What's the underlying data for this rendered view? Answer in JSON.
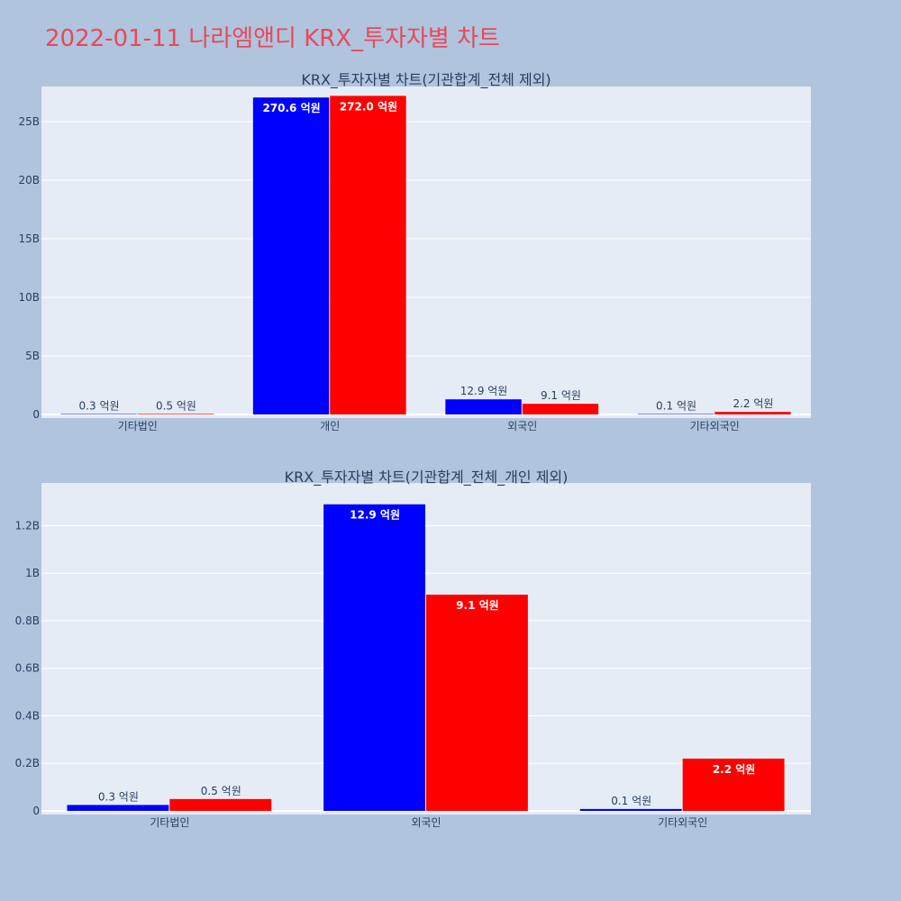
{
  "title": "2022-01-11 나라엠앤디 KRX_투자자별 차트",
  "colors": {
    "series_a": "#0000ff",
    "series_b": "#ff0000",
    "background": "#b0c4de",
    "plot_bg": "#e5ecf6",
    "title": "#e8485a"
  },
  "chart_data": [
    {
      "type": "bar",
      "title": "KRX_투자자별 차트(기관합계_전체 제외)",
      "categories": [
        "기타법인",
        "개인",
        "외국인",
        "기타외국인"
      ],
      "series": [
        {
          "values": [
            25000000,
            27060000000,
            1290000000,
            8000000
          ],
          "labels": [
            "0.3 억원",
            "270.6 억원",
            "12.9 억원",
            "0.1 억원"
          ]
        },
        {
          "values": [
            50000000,
            27200000000,
            910000000,
            220000000
          ],
          "labels": [
            "0.5 억원",
            "272.0 억원",
            "9.1 억원",
            "2.2 억원"
          ]
        }
      ],
      "ylim": [
        0,
        28000000000
      ],
      "yticks": [
        0,
        5000000000,
        10000000000,
        15000000000,
        20000000000,
        25000000000
      ],
      "ytick_labels": [
        "0",
        "5B",
        "10B",
        "15B",
        "20B",
        "25B"
      ],
      "grid": true,
      "legend": "none"
    },
    {
      "type": "bar",
      "title": "KRX_투자자별 차트(기관합계_전체_개인 제외)",
      "categories": [
        "기타법인",
        "외국인",
        "기타외국인"
      ],
      "series": [
        {
          "values": [
            25000000,
            1290000000,
            8000000
          ],
          "labels": [
            "0.3 억원",
            "12.9 억원",
            "0.1 억원"
          ]
        },
        {
          "values": [
            50000000,
            910000000,
            220000000
          ],
          "labels": [
            "0.5 억원",
            "9.1 억원",
            "2.2 억원"
          ]
        }
      ],
      "ylim": [
        0,
        1380000000
      ],
      "yticks": [
        0,
        200000000,
        400000000,
        600000000,
        800000000,
        1000000000,
        1200000000
      ],
      "ytick_labels": [
        "0",
        "0.2B",
        "0.4B",
        "0.6B",
        "0.8B",
        "1B",
        "1.2B"
      ],
      "grid": true,
      "legend": "none"
    }
  ]
}
